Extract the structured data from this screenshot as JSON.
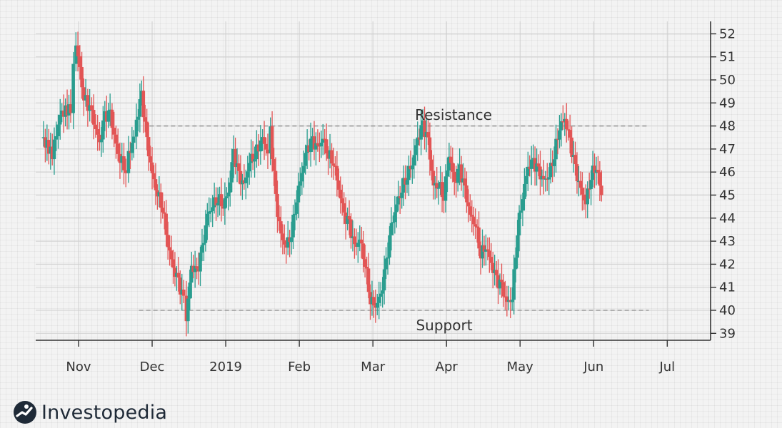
{
  "brand": {
    "name": "Investopedia",
    "icon": "investopedia-logo-icon"
  },
  "colors": {
    "up": "#2a9d8f",
    "down": "#e25555",
    "axis": "#333333",
    "line": "#9a9a9a"
  },
  "chart_data": {
    "type": "candlestick",
    "title": "",
    "ylim": [
      38.7,
      52.7
    ],
    "y_ticks": [
      39,
      40,
      41,
      42,
      43,
      44,
      45,
      46,
      47,
      48,
      49,
      50,
      51,
      52
    ],
    "y_axis_side": "right",
    "grid": true,
    "x_labels": [
      "Nov",
      "Dec",
      "2019",
      "Feb",
      "Mar",
      "Apr",
      "May",
      "Jun",
      "Jul"
    ],
    "x_range_days": [
      -35,
      217
    ],
    "x_label_days": [
      0,
      28,
      56,
      84,
      112,
      140,
      168,
      196,
      224
    ],
    "annotations": [
      {
        "label": "Resistance",
        "value": 48,
        "day_from": 27,
        "day_to": 217,
        "label_day": 109,
        "label_position": "above"
      },
      {
        "label": "Support",
        "value": 40,
        "day_from": 23,
        "day_to": 217,
        "label_day": 109,
        "label_position": "below"
      }
    ],
    "waypoints": [
      [
        -14,
        47.5
      ],
      [
        -10,
        46.8
      ],
      [
        -7,
        48.5
      ],
      [
        -3,
        48.8
      ],
      [
        -2,
        50.5
      ],
      [
        -1,
        51.6
      ],
      [
        2,
        49.3
      ],
      [
        5,
        48.5
      ],
      [
        8,
        47.2
      ],
      [
        10,
        48.4
      ],
      [
        12,
        48.5
      ],
      [
        15,
        46.7
      ],
      [
        18,
        46.2
      ],
      [
        19,
        46.7
      ],
      [
        21,
        47.5
      ],
      [
        22,
        48.2
      ],
      [
        24,
        49.3
      ],
      [
        26,
        47.3
      ],
      [
        28,
        45.9
      ],
      [
        30,
        45.1
      ],
      [
        32,
        44.5
      ],
      [
        34,
        42.9
      ],
      [
        36,
        41.8
      ],
      [
        38,
        41.2
      ],
      [
        40,
        40.4
      ],
      [
        41,
        39.7
      ],
      [
        43,
        41.9
      ],
      [
        45,
        41.6
      ],
      [
        47,
        42.6
      ],
      [
        49,
        44.1
      ],
      [
        51,
        44.6
      ],
      [
        53,
        44.9
      ],
      [
        55,
        44.6
      ],
      [
        57,
        45.1
      ],
      [
        59,
        46.8
      ],
      [
        61,
        45.8
      ],
      [
        63,
        45.4
      ],
      [
        65,
        46.5
      ],
      [
        67,
        46.8
      ],
      [
        70,
        47.4
      ],
      [
        72,
        46.9
      ],
      [
        73,
        47.8
      ],
      [
        75,
        44.8
      ],
      [
        77,
        43.2
      ],
      [
        79,
        42.8
      ],
      [
        81,
        43.4
      ],
      [
        83,
        44.9
      ],
      [
        85,
        46.0
      ],
      [
        87,
        47.0
      ],
      [
        89,
        47.3
      ],
      [
        91,
        47.0
      ],
      [
        93,
        47.5
      ],
      [
        95,
        46.8
      ],
      [
        97,
        46.5
      ],
      [
        99,
        45.3
      ],
      [
        101,
        44.1
      ],
      [
        103,
        43.7
      ],
      [
        105,
        42.7
      ],
      [
        107,
        43.1
      ],
      [
        109,
        42.1
      ],
      [
        111,
        40.5
      ],
      [
        113,
        40.2
      ],
      [
        115,
        40.6
      ],
      [
        117,
        42.0
      ],
      [
        119,
        43.6
      ],
      [
        121,
        44.6
      ],
      [
        123,
        45.3
      ],
      [
        125,
        45.9
      ],
      [
        127,
        46.4
      ],
      [
        129,
        47.4
      ],
      [
        131,
        48.0
      ],
      [
        133,
        47.3
      ],
      [
        135,
        45.4
      ],
      [
        137,
        45.5
      ],
      [
        139,
        45.0
      ],
      [
        141,
        46.8
      ],
      [
        143,
        45.5
      ],
      [
        145,
        46.1
      ],
      [
        147,
        45.2
      ],
      [
        149,
        44.1
      ],
      [
        151,
        43.8
      ],
      [
        153,
        42.5
      ],
      [
        155,
        42.8
      ],
      [
        157,
        42.0
      ],
      [
        159,
        41.3
      ],
      [
        161,
        41.0
      ],
      [
        163,
        40.3
      ],
      [
        165,
        40.6
      ],
      [
        167,
        43.5
      ],
      [
        169,
        45.0
      ],
      [
        171,
        46.2
      ],
      [
        173,
        46.4
      ],
      [
        175,
        46.0
      ],
      [
        177,
        45.6
      ],
      [
        179,
        45.9
      ],
      [
        181,
        46.8
      ],
      [
        183,
        48.0
      ],
      [
        185,
        48.3
      ],
      [
        187,
        47.3
      ],
      [
        189,
        46.1
      ],
      [
        191,
        45.2
      ],
      [
        193,
        44.7
      ],
      [
        195,
        45.9
      ],
      [
        197,
        46.3
      ],
      [
        199,
        45.0
      ]
    ]
  }
}
